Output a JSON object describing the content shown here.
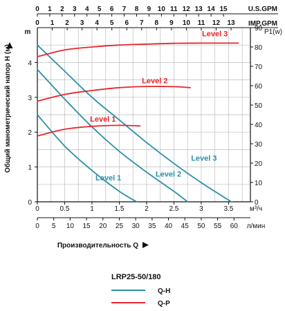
{
  "chart_data": {
    "type": "line",
    "model": "LRP25-50/180",
    "xlabel": "Производительность Q",
    "ylabel": "Общий манометрический напор H (м)",
    "xlim_m3h": [
      0,
      3.9
    ],
    "ylim_m": [
      0,
      5
    ],
    "y_unit": "m",
    "y2_unit": "P1(w)",
    "y2_ticks": [
      0,
      10,
      20,
      30,
      40,
      50,
      60,
      70,
      80,
      90
    ],
    "y2lim": [
      0,
      90
    ],
    "x_units": {
      "us_gpm": "U.S.GPM",
      "imp_gpm": "IMP.GPM",
      "m3h": "м³/ч",
      "lmin": "л/мин"
    },
    "x_ticks_us_gpm": [
      "0",
      "1",
      "2",
      "3",
      "4",
      "5",
      "6",
      "7",
      "8",
      "9",
      "10",
      "11",
      "12",
      "13",
      "14",
      "15"
    ],
    "x_ticks_imp_gpm": [
      "0",
      "1",
      "2",
      "3",
      "4",
      "5",
      "6",
      "7",
      "8",
      "9",
      "10",
      "11",
      "12",
      "13"
    ],
    "x_ticks_m3h": [
      "0",
      "0.5",
      "1",
      "1.5",
      "2",
      "2.5",
      "3",
      "3.5"
    ],
    "x_ticks_lmin": [
      "0",
      "5",
      "10",
      "15",
      "20",
      "25",
      "30",
      "35",
      "40",
      "45",
      "50",
      "55",
      "60"
    ],
    "y_ticks": [
      "0",
      "1",
      "2",
      "3",
      "4"
    ],
    "legend": [
      {
        "label": "Q-H",
        "color": "#2a8fa8"
      },
      {
        "label": "Q-P",
        "color": "#e8262b"
      }
    ],
    "series": [
      {
        "name": "Level 1",
        "kind": "Q-H",
        "color": "#2a8fa8",
        "points": [
          [
            0,
            2.5
          ],
          [
            0.5,
            1.6
          ],
          [
            1.0,
            0.9
          ],
          [
            1.5,
            0.3
          ],
          [
            1.82,
            0
          ]
        ]
      },
      {
        "name": "Level 2",
        "kind": "Q-H",
        "color": "#2a8fa8",
        "points": [
          [
            0,
            3.8
          ],
          [
            0.5,
            2.95
          ],
          [
            1.0,
            2.15
          ],
          [
            1.5,
            1.45
          ],
          [
            2.0,
            0.85
          ],
          [
            2.5,
            0.3
          ],
          [
            2.75,
            0
          ]
        ]
      },
      {
        "name": "Level 3",
        "kind": "Q-H",
        "color": "#2a8fa8",
        "points": [
          [
            0,
            4.5
          ],
          [
            0.5,
            3.75
          ],
          [
            1.0,
            3.0
          ],
          [
            1.5,
            2.35
          ],
          [
            2.0,
            1.7
          ],
          [
            2.5,
            1.1
          ],
          [
            3.0,
            0.55
          ],
          [
            3.5,
            0.05
          ],
          [
            3.56,
            0
          ]
        ]
      },
      {
        "name": "Level 1",
        "kind": "Q-P",
        "color": "#e8262b",
        "points": [
          [
            0,
            34
          ],
          [
            0.5,
            37.5
          ],
          [
            1.0,
            39
          ],
          [
            1.5,
            39.5
          ],
          [
            1.88,
            39.2
          ]
        ]
      },
      {
        "name": "Level 2",
        "kind": "Q-P",
        "color": "#e8262b",
        "points": [
          [
            0,
            52
          ],
          [
            0.5,
            55.5
          ],
          [
            1.0,
            57.5
          ],
          [
            1.5,
            59
          ],
          [
            2.0,
            59.6
          ],
          [
            2.5,
            59.5
          ],
          [
            2.8,
            59
          ]
        ]
      },
      {
        "name": "Level 3",
        "kind": "Q-P",
        "color": "#e8262b",
        "points": [
          [
            0,
            75
          ],
          [
            0.5,
            78.5
          ],
          [
            1.0,
            80
          ],
          [
            1.5,
            81
          ],
          [
            2.0,
            81.5
          ],
          [
            2.5,
            81.9
          ],
          [
            3.0,
            82
          ],
          [
            3.5,
            82
          ],
          [
            3.68,
            82
          ]
        ]
      }
    ],
    "labels": [
      {
        "text": "Level 1",
        "color": "#e8262b",
        "at": [
          1.2,
          2.3
        ]
      },
      {
        "text": "Level 2",
        "color": "#e8262b",
        "at": [
          2.15,
          3.4
        ]
      },
      {
        "text": "Level 3",
        "color": "#e8262b",
        "at": [
          3.25,
          4.75
        ]
      },
      {
        "text": "Level 1",
        "color": "#2a8fa8",
        "at": [
          1.3,
          0.62
        ]
      },
      {
        "text": "Level 2",
        "color": "#2a8fa8",
        "at": [
          2.4,
          0.72
        ]
      },
      {
        "text": "Level 3",
        "color": "#2a8fa8",
        "at": [
          3.05,
          1.18
        ]
      }
    ],
    "grid": true
  }
}
